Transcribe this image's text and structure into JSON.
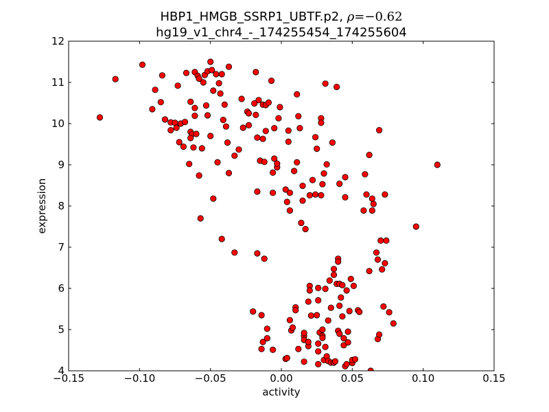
{
  "chart_data": {
    "type": "scatter",
    "title_line1_prefix": "HBP1_HMGB_SSRP1_UBTF.p2, ",
    "title_line1_rho_symbol": "ρ",
    "title_line1_rho_value": "=−0.62",
    "title_line2": "hg19_v1_chr4_-_174255454_174255604",
    "xlabel": "activity",
    "ylabel": "expression",
    "xlim": [
      -0.15,
      0.15
    ],
    "ylim": [
      4,
      12
    ],
    "xticks": [
      -0.15,
      -0.1,
      -0.05,
      0.0,
      0.05,
      0.1,
      0.15
    ],
    "xtick_labels": [
      "−0.15",
      "−0.10",
      "−0.05",
      "0.00",
      "0.05",
      "0.10",
      "0.15"
    ],
    "yticks": [
      4,
      5,
      6,
      7,
      8,
      9,
      10,
      11,
      12
    ],
    "ytick_labels": [
      "4",
      "5",
      "6",
      "7",
      "8",
      "9",
      "10",
      "11",
      "12"
    ],
    "grid": false,
    "marker_color": "#ff0000",
    "marker_edge": "#000000",
    "points": [
      {
        "x": -0.128,
        "y": 10.15
      },
      {
        "x": -0.117,
        "y": 11.08
      },
      {
        "x": -0.098,
        "y": 11.43
      },
      {
        "x": -0.091,
        "y": 10.35
      },
      {
        "x": -0.089,
        "y": 10.82
      },
      {
        "x": -0.085,
        "y": 10.52
      },
      {
        "x": -0.084,
        "y": 11.17
      },
      {
        "x": -0.082,
        "y": 10.1
      },
      {
        "x": -0.078,
        "y": 10.03
      },
      {
        "x": -0.078,
        "y": 9.84
      },
      {
        "x": -0.075,
        "y": 10.02
      },
      {
        "x": -0.074,
        "y": 9.9
      },
      {
        "x": -0.073,
        "y": 10.92
      },
      {
        "x": -0.072,
        "y": 9.55
      },
      {
        "x": -0.071,
        "y": 10.0
      },
      {
        "x": -0.069,
        "y": 9.44
      },
      {
        "x": -0.068,
        "y": 10.04
      },
      {
        "x": -0.067,
        "y": 11.23
      },
      {
        "x": -0.065,
        "y": 9.02
      },
      {
        "x": -0.064,
        "y": 10.53
      },
      {
        "x": -0.064,
        "y": 9.8
      },
      {
        "x": -0.063,
        "y": 9.74
      },
      {
        "x": -0.064,
        "y": 9.65
      },
      {
        "x": -0.062,
        "y": 9.42
      },
      {
        "x": -0.061,
        "y": 10.38
      },
      {
        "x": -0.061,
        "y": 10.19
      },
      {
        "x": -0.06,
        "y": 9.75
      },
      {
        "x": -0.061,
        "y": 11.25
      },
      {
        "x": -0.059,
        "y": 11.16
      },
      {
        "x": -0.058,
        "y": 11.09
      },
      {
        "x": -0.058,
        "y": 8.74
      },
      {
        "x": -0.057,
        "y": 7.7
      },
      {
        "x": -0.056,
        "y": 9.4
      },
      {
        "x": -0.055,
        "y": 11.0
      },
      {
        "x": -0.054,
        "y": 11.18
      },
      {
        "x": -0.053,
        "y": 10.44
      },
      {
        "x": -0.052,
        "y": 11.27
      },
      {
        "x": -0.052,
        "y": 10.2
      },
      {
        "x": -0.05,
        "y": 11.5
      },
      {
        "x": -0.05,
        "y": 9.7
      },
      {
        "x": -0.049,
        "y": 11.3
      },
      {
        "x": -0.048,
        "y": 10.8
      },
      {
        "x": -0.048,
        "y": 8.18
      },
      {
        "x": -0.046,
        "y": 11.2
      },
      {
        "x": -0.045,
        "y": 9.06
      },
      {
        "x": -0.044,
        "y": 10.98
      },
      {
        "x": -0.043,
        "y": 10.73
      },
      {
        "x": -0.042,
        "y": 7.2
      },
      {
        "x": -0.042,
        "y": 11.2
      },
      {
        "x": -0.041,
        "y": 10.09
      },
      {
        "x": -0.04,
        "y": 10.46
      },
      {
        "x": -0.039,
        "y": 9.93
      },
      {
        "x": -0.038,
        "y": 9.54
      },
      {
        "x": -0.037,
        "y": 8.8
      },
      {
        "x": -0.037,
        "y": 11.38
      },
      {
        "x": -0.033,
        "y": 9.22
      },
      {
        "x": -0.033,
        "y": 6.87
      },
      {
        "x": -0.03,
        "y": 9.37
      },
      {
        "x": -0.028,
        "y": 10.6
      },
      {
        "x": -0.027,
        "y": 9.9
      },
      {
        "x": -0.024,
        "y": 10.29
      },
      {
        "x": -0.023,
        "y": 10.25
      },
      {
        "x": -0.023,
        "y": 9.96
      },
      {
        "x": -0.02,
        "y": 5.44
      },
      {
        "x": -0.019,
        "y": 10.49
      },
      {
        "x": -0.018,
        "y": 11.25
      },
      {
        "x": -0.018,
        "y": 10.21
      },
      {
        "x": -0.017,
        "y": 9.66
      },
      {
        "x": -0.017,
        "y": 8.35
      },
      {
        "x": -0.017,
        "y": 6.85
      },
      {
        "x": -0.016,
        "y": 10.57
      },
      {
        "x": -0.015,
        "y": 9.1
      },
      {
        "x": -0.014,
        "y": 5.35
      },
      {
        "x": -0.014,
        "y": 4.53
      },
      {
        "x": -0.013,
        "y": 4.7
      },
      {
        "x": -0.013,
        "y": 10.46
      },
      {
        "x": -0.013,
        "y": 9.63
      },
      {
        "x": -0.012,
        "y": 9.07
      },
      {
        "x": -0.012,
        "y": 6.72
      },
      {
        "x": -0.011,
        "y": 10.45
      },
      {
        "x": -0.011,
        "y": 9.82
      },
      {
        "x": -0.01,
        "y": 5.02
      },
      {
        "x": -0.01,
        "y": 4.79
      },
      {
        "x": -0.009,
        "y": 10.51
      },
      {
        "x": -0.007,
        "y": 11.04
      },
      {
        "x": -0.006,
        "y": 8.32
      },
      {
        "x": -0.006,
        "y": 8.81
      },
      {
        "x": -0.006,
        "y": 4.51
      },
      {
        "x": -0.005,
        "y": 9.89
      },
      {
        "x": -0.005,
        "y": 9.15
      },
      {
        "x": -0.003,
        "y": 8.94
      },
      {
        "x": -0.003,
        "y": 9.03
      },
      {
        "x": -0.002,
        "y": 10.13
      },
      {
        "x": -0.001,
        "y": 10.4
      },
      {
        "x": 0.003,
        "y": 8.4
      },
      {
        "x": 0.003,
        "y": 4.29
      },
      {
        "x": 0.004,
        "y": 4.31
      },
      {
        "x": 0.004,
        "y": 8.1
      },
      {
        "x": 0.005,
        "y": 9.56
      },
      {
        "x": 0.005,
        "y": 9.83
      },
      {
        "x": 0.006,
        "y": 5.23
      },
      {
        "x": 0.006,
        "y": 8.32
      },
      {
        "x": 0.006,
        "y": 7.89
      },
      {
        "x": 0.007,
        "y": 4.98
      },
      {
        "x": 0.008,
        "y": 5.05
      },
      {
        "x": 0.009,
        "y": 8.85
      },
      {
        "x": 0.01,
        "y": 5.54
      },
      {
        "x": 0.01,
        "y": 5.47
      },
      {
        "x": 0.011,
        "y": 10.71
      },
      {
        "x": 0.011,
        "y": 9.06
      },
      {
        "x": 0.012,
        "y": 10.18
      },
      {
        "x": 0.012,
        "y": 4.53
      },
      {
        "x": 0.013,
        "y": 9.89
      },
      {
        "x": 0.014,
        "y": 7.59
      },
      {
        "x": 0.015,
        "y": 8.49
      },
      {
        "x": 0.015,
        "y": 8.13
      },
      {
        "x": 0.016,
        "y": 4.84
      },
      {
        "x": 0.016,
        "y": 4.75
      },
      {
        "x": 0.016,
        "y": 4.92
      },
      {
        "x": 0.016,
        "y": 4.22
      },
      {
        "x": 0.017,
        "y": 7.44
      },
      {
        "x": 0.019,
        "y": 5.68
      },
      {
        "x": 0.019,
        "y": 4.6
      },
      {
        "x": 0.019,
        "y": 4.7
      },
      {
        "x": 0.02,
        "y": 8.26
      },
      {
        "x": 0.02,
        "y": 6.06
      },
      {
        "x": 0.02,
        "y": 5.95
      },
      {
        "x": 0.021,
        "y": 5.34
      },
      {
        "x": 0.022,
        "y": 8.63
      },
      {
        "x": 0.024,
        "y": 8.28
      },
      {
        "x": 0.024,
        "y": 9.67
      },
      {
        "x": 0.025,
        "y": 9.39
      },
      {
        "x": 0.025,
        "y": 5.35
      },
      {
        "x": 0.026,
        "y": 5.71
      },
      {
        "x": 0.026,
        "y": 6.01
      },
      {
        "x": 0.026,
        "y": 4.66
      },
      {
        "x": 0.026,
        "y": 4.47
      },
      {
        "x": 0.026,
        "y": 4.16
      },
      {
        "x": 0.027,
        "y": 4.93
      },
      {
        "x": 0.028,
        "y": 10.13
      },
      {
        "x": 0.028,
        "y": 10.02
      },
      {
        "x": 0.028,
        "y": 8.26
      },
      {
        "x": 0.029,
        "y": 5.0
      },
      {
        "x": 0.029,
        "y": 4.85
      },
      {
        "x": 0.029,
        "y": 4.8
      },
      {
        "x": 0.029,
        "y": 8.53
      },
      {
        "x": 0.03,
        "y": 8.79
      },
      {
        "x": 0.03,
        "y": 4.26
      },
      {
        "x": 0.031,
        "y": 10.97
      },
      {
        "x": 0.031,
        "y": 5.99
      },
      {
        "x": 0.031,
        "y": 4.58
      },
      {
        "x": 0.032,
        "y": 9.01
      },
      {
        "x": 0.032,
        "y": 4.35
      },
      {
        "x": 0.033,
        "y": 5.22
      },
      {
        "x": 0.033,
        "y": 4.24
      },
      {
        "x": 0.034,
        "y": 6.19
      },
      {
        "x": 0.035,
        "y": 5.53
      },
      {
        "x": 0.035,
        "y": 4.2
      },
      {
        "x": 0.036,
        "y": 9.54
      },
      {
        "x": 0.037,
        "y": 6.47
      },
      {
        "x": 0.037,
        "y": 6.33
      },
      {
        "x": 0.037,
        "y": 4.2
      },
      {
        "x": 0.038,
        "y": 4.23
      },
      {
        "x": 0.039,
        "y": 10.89
      },
      {
        "x": 0.039,
        "y": 6.11
      },
      {
        "x": 0.04,
        "y": 6.72
      },
      {
        "x": 0.04,
        "y": 6.65
      },
      {
        "x": 0.04,
        "y": 4.97
      },
      {
        "x": 0.041,
        "y": 8.54
      },
      {
        "x": 0.041,
        "y": 6.11
      },
      {
        "x": 0.041,
        "y": 5.58
      },
      {
        "x": 0.041,
        "y": 4.9
      },
      {
        "x": 0.042,
        "y": 5.78
      },
      {
        "x": 0.043,
        "y": 6.08
      },
      {
        "x": 0.043,
        "y": 5.32
      },
      {
        "x": 0.044,
        "y": 4.79
      },
      {
        "x": 0.044,
        "y": 4.62
      },
      {
        "x": 0.045,
        "y": 8.7
      },
      {
        "x": 0.045,
        "y": 8.21
      },
      {
        "x": 0.045,
        "y": 4.11
      },
      {
        "x": 0.046,
        "y": 5.95
      },
      {
        "x": 0.046,
        "y": 4.16
      },
      {
        "x": 0.047,
        "y": 4.95
      },
      {
        "x": 0.047,
        "y": 4.69
      },
      {
        "x": 0.048,
        "y": 5.45
      },
      {
        "x": 0.049,
        "y": 6.23
      },
      {
        "x": 0.05,
        "y": 4.19
      },
      {
        "x": 0.05,
        "y": 4.26
      },
      {
        "x": 0.051,
        "y": 6.06
      },
      {
        "x": 0.052,
        "y": 4.28
      },
      {
        "x": 0.054,
        "y": 5.47
      },
      {
        "x": 0.055,
        "y": 5.43
      },
      {
        "x": 0.058,
        "y": 7.89
      },
      {
        "x": 0.059,
        "y": 8.77
      },
      {
        "x": 0.06,
        "y": 8.28
      },
      {
        "x": 0.062,
        "y": 9.24
      },
      {
        "x": 0.062,
        "y": 6.42
      },
      {
        "x": 0.063,
        "y": 4.0
      },
      {
        "x": 0.064,
        "y": 8.18
      },
      {
        "x": 0.064,
        "y": 7.89
      },
      {
        "x": 0.065,
        "y": 8.05
      },
      {
        "x": 0.067,
        "y": 6.87
      },
      {
        "x": 0.068,
        "y": 6.7
      },
      {
        "x": 0.068,
        "y": 4.77
      },
      {
        "x": 0.069,
        "y": 9.84
      },
      {
        "x": 0.069,
        "y": 4.88
      },
      {
        "x": 0.07,
        "y": 7.16
      },
      {
        "x": 0.071,
        "y": 6.46
      },
      {
        "x": 0.072,
        "y": 5.56
      },
      {
        "x": 0.073,
        "y": 8.28
      },
      {
        "x": 0.073,
        "y": 6.61
      },
      {
        "x": 0.074,
        "y": 7.16
      },
      {
        "x": 0.076,
        "y": 5.42
      },
      {
        "x": 0.079,
        "y": 5.15
      },
      {
        "x": 0.095,
        "y": 7.5
      },
      {
        "x": 0.11,
        "y": 9.0
      }
    ]
  }
}
